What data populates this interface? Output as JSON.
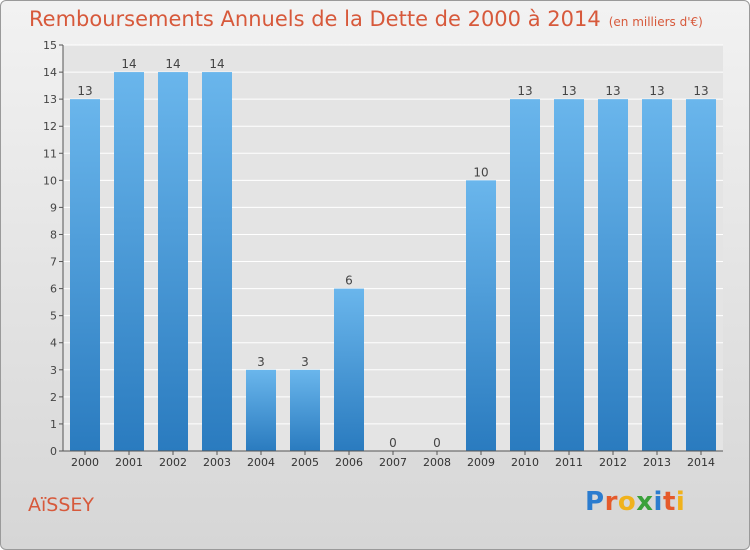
{
  "title": "Remboursements Annuels de la Dette de 2000 à 2014",
  "unit_note": "(en milliers d'€)",
  "commune": "AïSSEY",
  "logo": {
    "letters": [
      "P",
      "r",
      "o",
      "x",
      "i",
      "t",
      "i"
    ],
    "colors": [
      "#2b7ccf",
      "#e55a2b",
      "#f0b21c",
      "#3aa13a",
      "#2b7ccf",
      "#e55a2b",
      "#f0b21c"
    ]
  },
  "colors": {
    "title": "#d7593b",
    "bar_top": "#6ab6ec",
    "bar_bottom": "#2a7bbf",
    "plot_bg": "#e4e4e4",
    "grid": "#ffffff"
  },
  "chart_data": {
    "type": "bar",
    "categories": [
      "2000",
      "2001",
      "2002",
      "2003",
      "2004",
      "2005",
      "2006",
      "2007",
      "2008",
      "2009",
      "2010",
      "2011",
      "2012",
      "2013",
      "2014"
    ],
    "values": [
      13,
      14,
      14,
      14,
      3,
      3,
      6,
      0,
      0,
      10,
      13,
      13,
      13,
      13,
      13
    ],
    "yticks": [
      0,
      1,
      2,
      3,
      4,
      5,
      6,
      7,
      8,
      9,
      10,
      11,
      12,
      13,
      14,
      15
    ],
    "ylim": [
      0,
      15
    ],
    "grid": true,
    "xlabel": "",
    "ylabel": ""
  }
}
